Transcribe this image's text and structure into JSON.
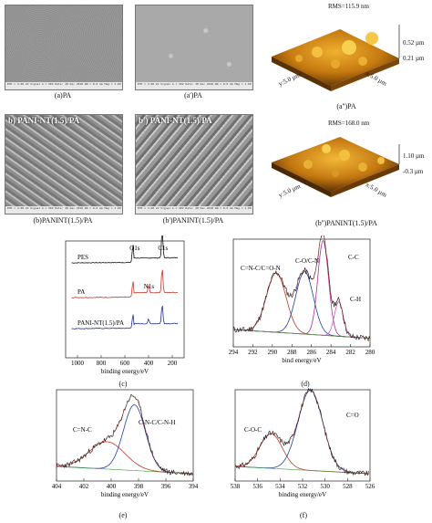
{
  "panels": {
    "a": {
      "caption": "(a)PA"
    },
    "a1": {
      "caption": "(a')PA"
    },
    "a2": {
      "caption": "(a'')PA",
      "rms": "RMS=115.9 nm",
      "z_top": "0.52 µm",
      "z_bot": "0.21 µm",
      "x_axis": "x:5.0 µm",
      "y_axis": "y:5.0 µm"
    },
    "b": {
      "caption": "(b)PANINT(1.5)/PA",
      "label": "b) PANI-NT(1.5)/PA"
    },
    "b1": {
      "caption": "(b')PANINT(1.5)/PA",
      "label": "b') PANI-NT(1.5)/PA"
    },
    "b2": {
      "caption": "(b'')PANINT(1.5)/PA",
      "rms": "RMS=168.0 nm",
      "z_top": "1.10 µm",
      "z_bot": "-0.3 µm",
      "x_axis": "x:5.0 µm",
      "y_axis": "y:5.0 µm"
    },
    "sem_bar_text": "EHT = 3.00 kV   Signal A = SE2   Date: 28 Dec 2018   WD = 8.0 mm   Mag = 1.00 K X   Time: 10:03:12"
  },
  "chart_data": [
    {
      "type": "line",
      "panel": "(c)",
      "xlabel": "binding energy/eV",
      "xlim": [
        1100,
        100
      ],
      "x_ticks": [
        1000,
        800,
        600,
        400,
        200
      ],
      "series": [
        {
          "name": "PES",
          "color": "#111111"
        },
        {
          "name": "PA",
          "color": "#c0392b"
        },
        {
          "name": "PANI-NT(1.5)/PA",
          "color": "#1f2f8f"
        }
      ],
      "annotations": [
        "O1s",
        "C1s",
        "N1s"
      ]
    },
    {
      "type": "line",
      "panel": "(d)",
      "xlabel": "bind energy/eV",
      "xlim": [
        294,
        280
      ],
      "x_ticks": [
        294,
        292,
        290,
        288,
        286,
        284,
        282,
        280
      ],
      "peaks": [
        {
          "name": "C=N-C/C=O-N",
          "center": 289.6,
          "height": 0.55,
          "color": "#c0392b"
        },
        {
          "name": "C-O/C-N",
          "center": 286.7,
          "height": 0.58,
          "color": "#1f3f9f"
        },
        {
          "name": "C-C",
          "center": 284.8,
          "height": 0.88,
          "color": "#b03090"
        },
        {
          "name": "C-H",
          "center": 283.2,
          "height": 0.32,
          "color": "#c060c0"
        }
      ]
    },
    {
      "type": "line",
      "panel": "(e)",
      "xlabel": "binding energy/eV",
      "xlim": [
        404,
        394
      ],
      "x_ticks": [
        404,
        402,
        400,
        398,
        396,
        394
      ],
      "peaks": [
        {
          "name": "C=N-C",
          "center": 400.3,
          "height": 0.3,
          "color": "#c0392b"
        },
        {
          "name": "C-N-C/C-N-H",
          "center": 398.3,
          "height": 0.72,
          "color": "#1f3f9f"
        }
      ]
    },
    {
      "type": "line",
      "panel": "(f)",
      "xlabel": "binding energy/eV",
      "xlim": [
        538,
        526
      ],
      "x_ticks": [
        538,
        536,
        534,
        532,
        530,
        528,
        526
      ],
      "peaks": [
        {
          "name": "C-O-C",
          "center": 534.8,
          "height": 0.38,
          "color": "#c0392b"
        },
        {
          "name": "C=O",
          "center": 531.3,
          "height": 0.88,
          "color": "#1f3f9f"
        }
      ]
    }
  ],
  "captions": {
    "c": "(c)",
    "d": "(d)",
    "e": "(e)",
    "f": "(f)"
  }
}
